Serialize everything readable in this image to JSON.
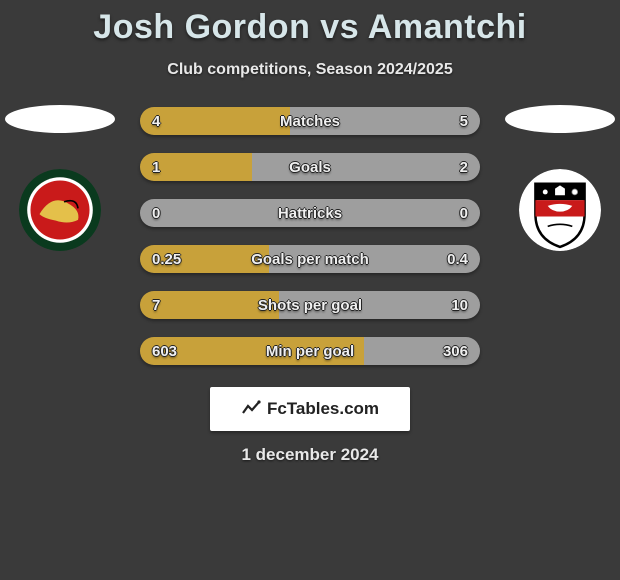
{
  "title": "Josh Gordon vs Amantchi",
  "subtitle": "Club competitions, Season 2024/2025",
  "date": "1 december 2024",
  "footer_label": "FcTables.com",
  "background_color": "#3a3a3a",
  "title_color": "#d7e6e9",
  "subtitle_color": "#e8e8e8",
  "avatar_color": "#ffffff",
  "footer_bg": "#ffffff",
  "footer_text_color": "#222222",
  "players": {
    "left": {
      "club_name": "Walsall FC",
      "logo_colors": {
        "outer": "#0a3a1e",
        "ring": "#ffffff",
        "inner": "#c91a1a",
        "accent": "#e4c04a"
      }
    },
    "right": {
      "club_name": "Bromley FC",
      "logo_colors": {
        "bg": "#ffffff",
        "top": "#000000",
        "mid": "#c91a1a",
        "border": "#000000"
      }
    }
  },
  "stats": [
    {
      "label": "Matches",
      "left_val": "4",
      "right_val": "5",
      "left_pct": 44,
      "right_pct": 56,
      "left_color": "#c8a13a",
      "right_color": "#9e9e9e"
    },
    {
      "label": "Goals",
      "left_val": "1",
      "right_val": "2",
      "left_pct": 33,
      "right_pct": 67,
      "left_color": "#c8a13a",
      "right_color": "#9e9e9e"
    },
    {
      "label": "Hattricks",
      "left_val": "0",
      "right_val": "0",
      "left_pct": 50,
      "right_pct": 50,
      "left_color": "#9e9e9e",
      "right_color": "#9e9e9e"
    },
    {
      "label": "Goals per match",
      "left_val": "0.25",
      "right_val": "0.4",
      "left_pct": 38,
      "right_pct": 62,
      "left_color": "#c8a13a",
      "right_color": "#9e9e9e"
    },
    {
      "label": "Shots per goal",
      "left_val": "7",
      "right_val": "10",
      "left_pct": 41,
      "right_pct": 59,
      "left_color": "#c8a13a",
      "right_color": "#9e9e9e"
    },
    {
      "label": "Min per goal",
      "left_val": "603",
      "right_val": "306",
      "left_pct": 66,
      "right_pct": 34,
      "left_color": "#c8a13a",
      "right_color": "#9e9e9e"
    }
  ]
}
